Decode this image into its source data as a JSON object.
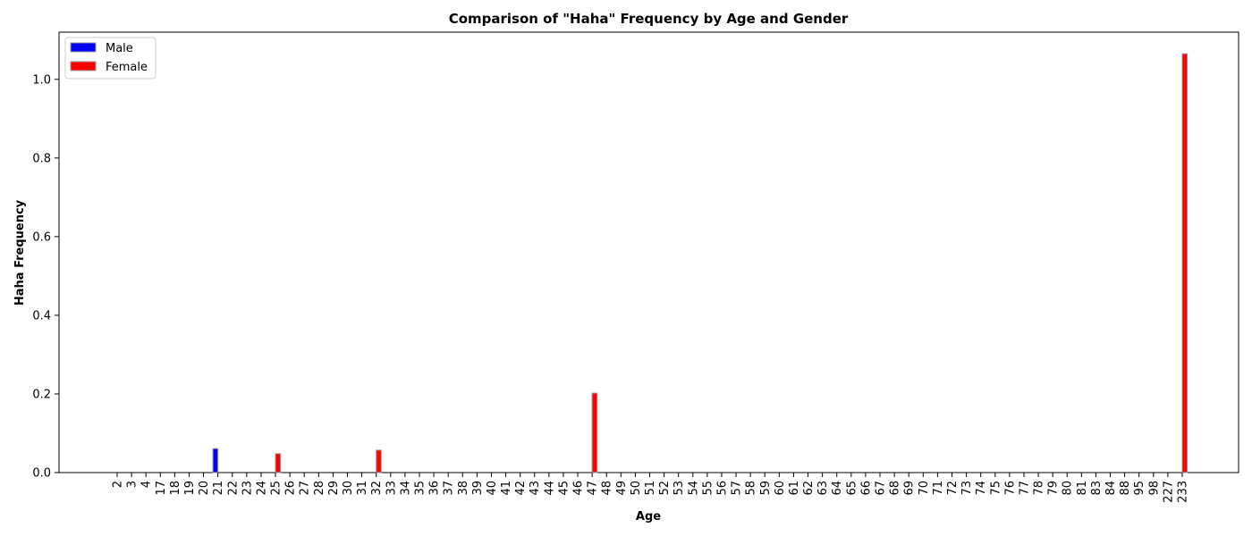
{
  "chart_data": {
    "type": "bar",
    "title": "Comparison of \"Haha\" Frequency by Age and Gender",
    "xlabel": "Age",
    "ylabel": "Haha Frequency",
    "ylim": [
      0,
      1.12
    ],
    "yticks": [
      "0.0",
      "0.2",
      "0.4",
      "0.6",
      "0.8",
      "1.0"
    ],
    "grid": false,
    "legend_position": "top-left",
    "categories": [
      "2",
      "3",
      "4",
      "17",
      "18",
      "19",
      "20",
      "21",
      "22",
      "23",
      "24",
      "25",
      "26",
      "27",
      "28",
      "29",
      "30",
      "31",
      "32",
      "33",
      "34",
      "35",
      "36",
      "37",
      "38",
      "39",
      "40",
      "41",
      "42",
      "43",
      "44",
      "45",
      "46",
      "47",
      "48",
      "49",
      "50",
      "51",
      "52",
      "53",
      "54",
      "55",
      "56",
      "57",
      "58",
      "59",
      "60",
      "61",
      "62",
      "63",
      "64",
      "65",
      "66",
      "67",
      "68",
      "69",
      "70",
      "71",
      "72",
      "73",
      "74",
      "75",
      "76",
      "77",
      "78",
      "79",
      "80",
      "81",
      "83",
      "84",
      "88",
      "95",
      "98",
      "227",
      "233"
    ],
    "series": [
      {
        "name": "Male",
        "color": "#0000ff",
        "values": [
          0,
          0,
          0,
          0,
          0,
          0,
          0,
          0.061,
          0,
          0,
          0,
          0,
          0,
          0,
          0,
          0,
          0,
          0,
          0,
          0,
          0,
          0,
          0,
          0,
          0,
          0,
          0,
          0,
          0,
          0,
          0,
          0,
          0,
          0,
          0,
          0,
          0,
          0,
          0,
          0,
          0,
          0,
          0,
          0,
          0,
          0,
          0,
          0,
          0,
          0,
          0,
          0,
          0,
          0,
          0,
          0,
          0,
          0,
          0,
          0,
          0,
          0,
          0,
          0,
          0,
          0,
          0,
          0,
          0,
          0,
          0,
          0,
          0,
          0,
          0
        ]
      },
      {
        "name": "Female",
        "color": "#ff0000",
        "values": [
          0,
          0,
          0,
          0,
          0,
          0,
          0,
          0,
          0,
          0,
          0,
          0.048,
          0,
          0,
          0,
          0,
          0,
          0,
          0.057,
          0,
          0,
          0,
          0,
          0,
          0,
          0,
          0,
          0,
          0,
          0,
          0,
          0,
          0,
          0.202,
          0,
          0,
          0,
          0,
          0,
          0,
          0,
          0,
          0,
          0,
          0,
          0,
          0,
          0,
          0,
          0,
          0,
          0,
          0,
          0,
          0,
          0,
          0,
          0,
          0,
          0,
          0,
          0,
          0,
          0,
          0,
          0,
          0,
          0,
          0,
          0,
          0,
          0,
          0,
          0,
          1.065
        ]
      }
    ]
  }
}
